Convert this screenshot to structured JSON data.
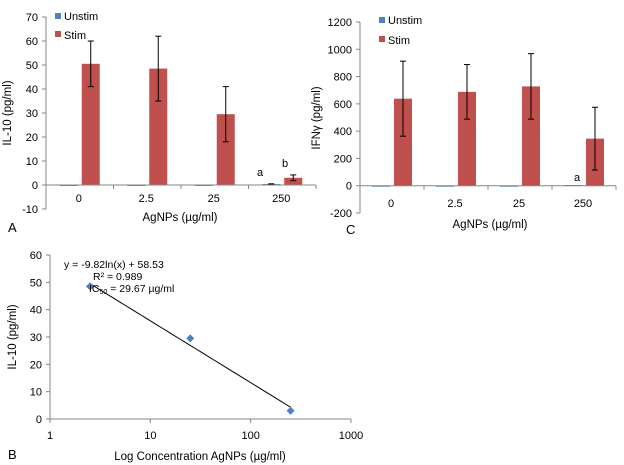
{
  "panel_labels": {
    "A": "A",
    "B": "B",
    "C": "C"
  },
  "chart_data": [
    {
      "panel": "A",
      "type": "bar",
      "categories": [
        "0",
        "2.5",
        "25",
        "250"
      ],
      "series": [
        {
          "name": "Unstim",
          "color": "#4f81bd",
          "values": [
            0,
            0,
            0,
            0.4
          ],
          "errors": [
            0,
            0,
            0,
            0.1
          ]
        },
        {
          "name": "Stim",
          "color": "#c0504d",
          "values": [
            50.5,
            48.5,
            29.5,
            3
          ],
          "errors": [
            9.5,
            13.5,
            11.5,
            1.2
          ]
        }
      ],
      "xlabel": "AgNPs (µg/ml)",
      "ylabel": "IL-10 (pg/ml)",
      "ylim": [
        -10,
        70
      ],
      "yticks": [
        "-10",
        "0",
        "10",
        "20",
        "30",
        "40",
        "50",
        "60",
        "70"
      ],
      "annotations": [
        {
          "text": "a",
          "category": "250",
          "series": "Unstim"
        },
        {
          "text": "b",
          "category": "250",
          "series": "Stim"
        }
      ],
      "legend": "top-left",
      "grid": false
    },
    {
      "panel": "C",
      "type": "bar",
      "categories": [
        "0",
        "2.5",
        "25",
        "250"
      ],
      "series": [
        {
          "name": "Unstim",
          "color": "#4f81bd",
          "values": [
            -5,
            0,
            -5,
            5
          ],
          "errors": [
            0,
            0,
            0,
            0
          ]
        },
        {
          "name": "Stim",
          "color": "#c0504d",
          "values": [
            638,
            688,
            728,
            345
          ],
          "errors": [
            275,
            200,
            240,
            230
          ]
        }
      ],
      "xlabel": "AgNPs (µg/ml)",
      "ylabel": "IFNγ (pg/ml)",
      "ylim": [
        -200,
        1200
      ],
      "yticks": [
        "-200",
        "0",
        "200",
        "400",
        "600",
        "800",
        "1000",
        "1200"
      ],
      "annotations": [
        {
          "text": "a",
          "category": "250",
          "series": "Unstim"
        }
      ],
      "legend": "top-left",
      "grid": false
    },
    {
      "panel": "B",
      "type": "scatter",
      "x_scale": "log",
      "x": [
        2.5,
        25,
        250
      ],
      "y": [
        48.5,
        29.5,
        3
      ],
      "marker_color": "#4f81bd",
      "trendline": {
        "type": "logarithmic",
        "slope": -9.82,
        "intercept": 58.53,
        "x_range": [
          2.5,
          250
        ]
      },
      "xlabel": "Log Concentration AgNPs (µg/ml)",
      "ylabel": "IL-10 (pg/ml)",
      "xlim": [
        1,
        1000
      ],
      "ylim": [
        0,
        60
      ],
      "xticks": [
        "1",
        "10",
        "100",
        "1000"
      ],
      "yticks": [
        "0",
        "10",
        "20",
        "30",
        "40",
        "50",
        "60"
      ],
      "equation": "y = -9.82ln(x) + 58.53",
      "r_squared": "R² = 0.989",
      "ic50_label": "IC",
      "ic50_sub": "50",
      "ic50_value": " = 29.67 µg/ml",
      "legend": "none",
      "grid": false
    }
  ]
}
